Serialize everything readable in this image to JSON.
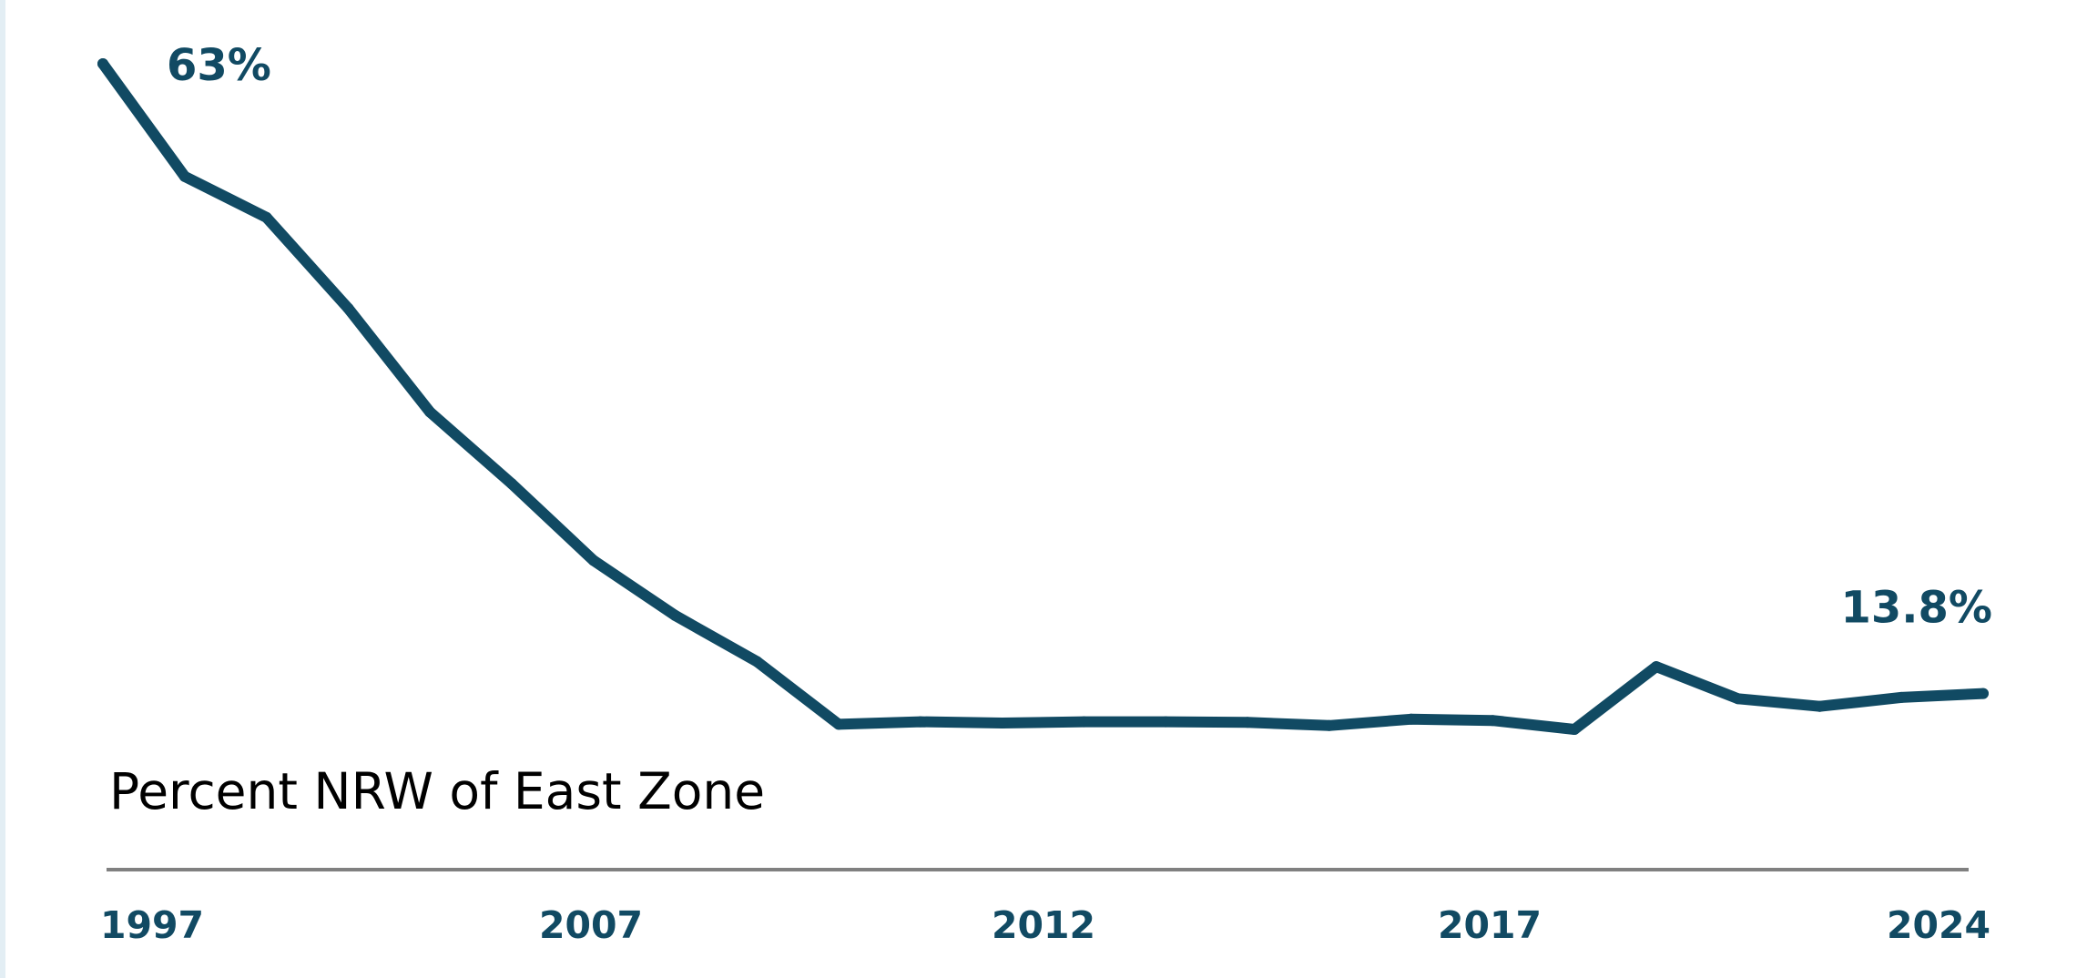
{
  "colors": {
    "line": "#114a63",
    "axis": "#808080",
    "text": "#114a63",
    "title": "#000000"
  },
  "chart_data": {
    "type": "line",
    "title": "Percent NRW of East Zone",
    "xlabel": "",
    "ylabel": "",
    "ylim": [
      0,
      65
    ],
    "grid": false,
    "legend": "none",
    "x_ticks": [
      "1997",
      "2007",
      "2012",
      "2017",
      "2024"
    ],
    "series": [
      {
        "values": [
          63,
          54.2,
          51,
          43.9,
          35.8,
          30.2,
          24.2,
          19.9,
          16.3,
          11.4,
          11.6,
          11.5,
          11.6,
          11.6,
          11.55,
          11.3,
          11.8,
          11.7,
          11.0,
          15.9,
          13.4,
          12.8,
          13.5,
          13.8
        ],
        "annotations": [
          {
            "index": 0,
            "text": "63%"
          },
          {
            "index": 23,
            "text": "13.8%"
          }
        ]
      }
    ]
  }
}
